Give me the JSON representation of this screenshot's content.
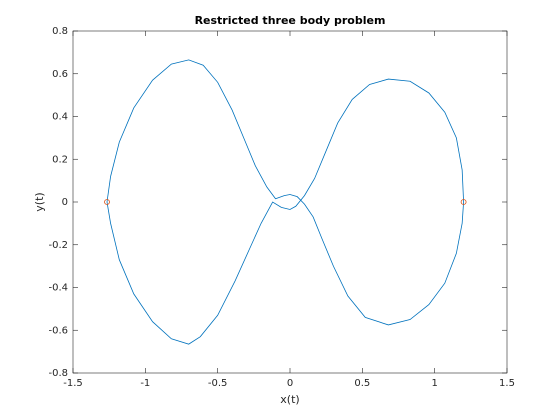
{
  "chart_data": {
    "type": "line",
    "title": "Restricted three body problem",
    "xlabel": "x(t)",
    "ylabel": "y(t)",
    "xlim": [
      -1.5,
      1.5
    ],
    "ylim": [
      -0.8,
      0.8
    ],
    "xticks": [
      -1.5,
      -1,
      -0.5,
      0,
      0.5,
      1,
      1.5
    ],
    "yticks": [
      -0.8,
      -0.6,
      -0.4,
      -0.2,
      0,
      0.2,
      0.4,
      0.6,
      0.8
    ],
    "series": [
      {
        "color": "#0072bd",
        "marker": "none",
        "x": [
          1.2,
          1.19,
          1.15,
          1.07,
          0.96,
          0.83,
          0.68,
          0.55,
          0.43,
          0.33,
          0.25,
          0.17,
          0.1,
          0.04,
          0,
          -0.06,
          -0.12,
          -0.2,
          -0.28,
          -0.38,
          -0.5,
          -0.62,
          -0.7,
          -0.82,
          -0.95,
          -1.08,
          -1.18,
          -1.24,
          -1.265,
          -1.24,
          -1.18,
          -1.08,
          -0.95,
          -0.82,
          -0.7,
          -0.6,
          -0.5,
          -0.4,
          -0.32,
          -0.24,
          -0.16,
          -0.1,
          -0.04,
          0,
          0.05,
          0.1,
          0.16,
          0.22,
          0.3,
          0.4,
          0.52,
          0.68,
          0.83,
          0.96,
          1.07,
          1.15,
          1.19,
          1.2
        ],
        "y": [
          0,
          0.15,
          0.3,
          0.42,
          0.51,
          0.565,
          0.575,
          0.55,
          0.48,
          0.37,
          0.24,
          0.11,
          0.03,
          -0.02,
          -0.035,
          -0.025,
          0.0,
          -0.1,
          -0.22,
          -0.37,
          -0.53,
          -0.63,
          -0.665,
          -0.64,
          -0.56,
          -0.43,
          -0.27,
          -0.1,
          0,
          0.12,
          0.28,
          0.44,
          0.57,
          0.645,
          0.665,
          0.64,
          0.56,
          0.43,
          0.3,
          0.17,
          0.07,
          0.015,
          0.03,
          0.035,
          0.025,
          -0.01,
          -0.07,
          -0.17,
          -0.3,
          -0.44,
          -0.54,
          -0.575,
          -0.55,
          -0.48,
          -0.38,
          -0.24,
          -0.1,
          0
        ]
      },
      {
        "color": "#d95319",
        "marker": "o",
        "x": [
          1.2,
          -1.265
        ],
        "y": [
          0,
          0
        ]
      }
    ]
  }
}
